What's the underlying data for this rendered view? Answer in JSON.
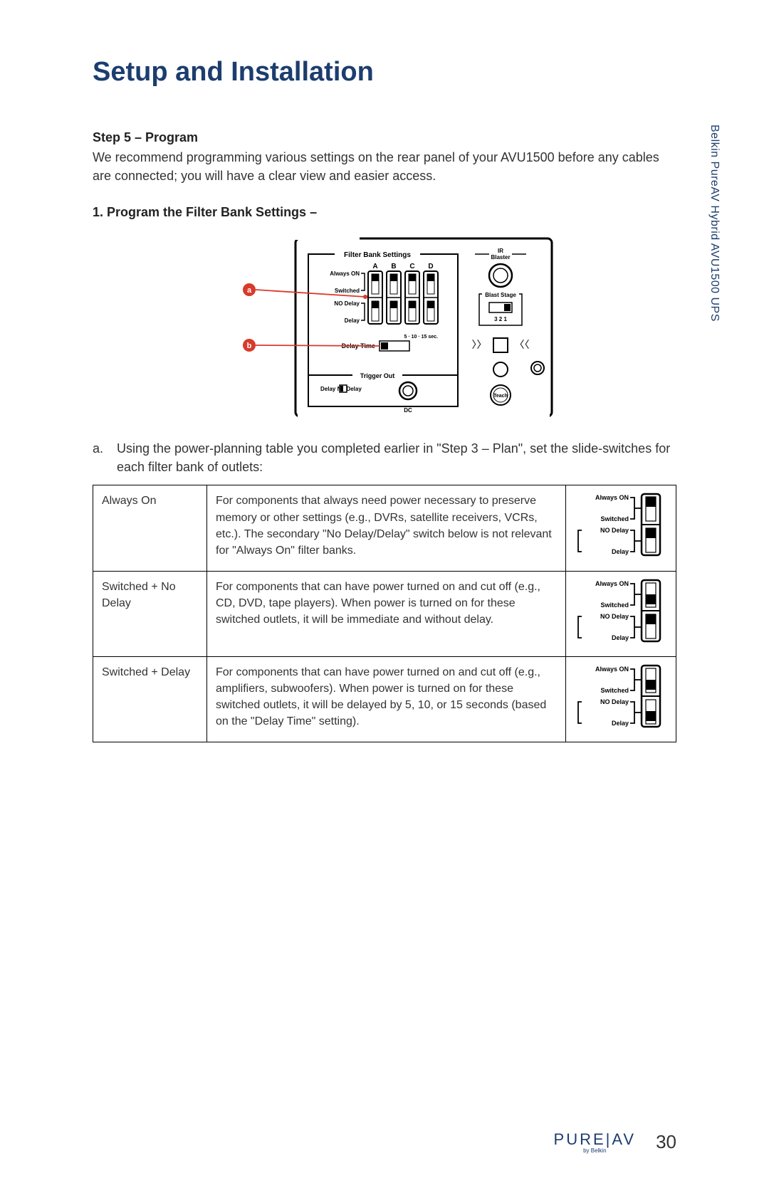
{
  "colors": {
    "heading": "#1c3d6e",
    "body": "#333333",
    "border": "#000000",
    "callout": "#d83a2b",
    "background": "#ffffff"
  },
  "typography": {
    "title_fontsize": 38,
    "body_fontsize": 18,
    "table_fontsize": 16,
    "font_family": "Arial"
  },
  "page_title": "Setup and Installation",
  "side_label": "Belkin PureAV Hybrid AVU1500 UPS",
  "step": {
    "heading": "Step 5 – Program",
    "body": "We recommend programming various settings on the rear panel of your AVU1500 before any cables are connected; you will have a clear view and easier access."
  },
  "section": {
    "heading": "1.  Program the Filter Bank Settings –",
    "list": {
      "letter": "a.",
      "text": "Using the power-planning table you completed earlier in \"Step 3 – Plan\", set the slide-switches for each filter bank of outlets:"
    }
  },
  "diagram": {
    "title": "Filter Bank Settings",
    "columns": [
      "A",
      "B",
      "C",
      "D"
    ],
    "labels": {
      "always_on": "Always ON",
      "switched": "Switched",
      "no_delay": "NO Delay",
      "delay": "Delay",
      "delay_time": "Delay Time",
      "delay_opts": "5 · 10 · 15 sec.",
      "trigger_out": "Trigger Out",
      "delay_nodelay": "Delay      No Delay",
      "dc": "DC",
      "ir_blaster": "IR\nBlaster",
      "blast_stage": "Blast Stage",
      "blast_nums": "3 2 1",
      "teach": "Teach"
    },
    "callouts": [
      "a",
      "b"
    ]
  },
  "table": {
    "rows": [
      {
        "name": "Always On",
        "desc": "For components that always need power necessary to preserve memory or other settings (e.g., DVRs, satellite receivers, VCRs, etc.). The secondary \"No Delay/Delay\" switch below is not relevant for \"Always On\" filter banks.",
        "sw": {
          "top_pos": "up",
          "bot_pos": "up"
        }
      },
      {
        "name": "Switched + No Delay",
        "desc": "For components that can have power turned on and cut off (e.g., CD, DVD, tape players). When power is turned on for these switched outlets, it will be immediate and without delay.",
        "sw": {
          "top_pos": "down",
          "bot_pos": "up"
        }
      },
      {
        "name": "Switched + Delay",
        "desc": "For components that can have power turned on and cut off (e.g., amplifiers, subwoofers). When power is turned on for these switched outlets, it will be delayed by 5, 10, or 15 seconds (based on the \"Delay Time\" setting).",
        "sw": {
          "top_pos": "down",
          "bot_pos": "down"
        }
      }
    ],
    "switch_labels": {
      "always_on": "Always ON",
      "switched": "Switched",
      "no_delay": "NO Delay",
      "delay": "Delay"
    }
  },
  "footer": {
    "brand_left": "PURE",
    "brand_right": "AV",
    "byline": "by Belkin",
    "page": "30"
  }
}
